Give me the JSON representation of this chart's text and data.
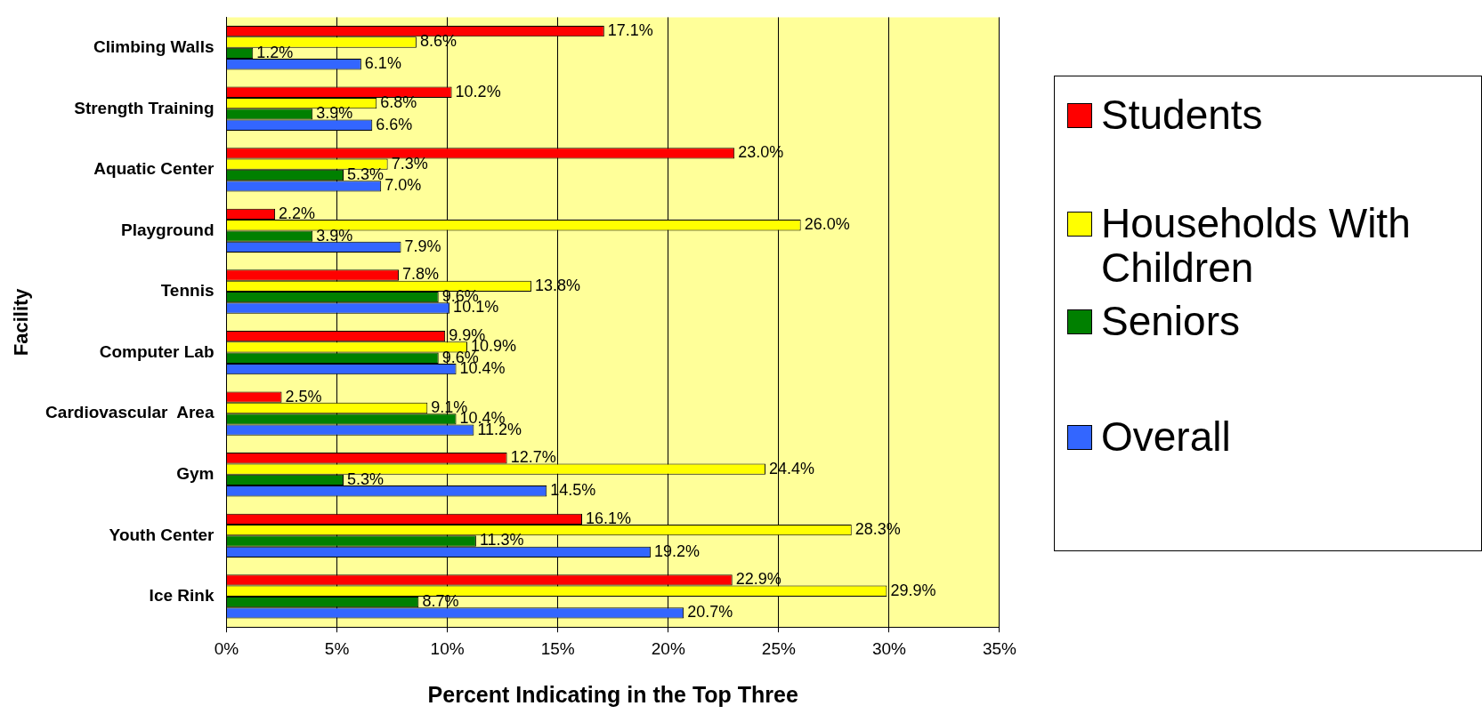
{
  "chart_data": {
    "type": "bar",
    "orientation": "horizontal",
    "xlabel": "Percent Indicating in the Top Three",
    "ylabel": "Facility",
    "categories": [
      "Climbing Walls",
      "Strength Training",
      "Aquatic Center",
      "Playground",
      "Tennis",
      "Computer Lab",
      "Cardiovascular  Area",
      "Gym",
      "Youth Center",
      "Ice Rink"
    ],
    "series": [
      {
        "name": "Students",
        "color": "#ff0000",
        "values": [
          17.1,
          10.2,
          23.0,
          2.2,
          7.8,
          9.9,
          2.5,
          12.7,
          16.1,
          22.9
        ],
        "value_labels": [
          "17.1%",
          "10.2%",
          "23.0%",
          "2.2%",
          "7.8%",
          "9.9%",
          "2.5%",
          "12.7%",
          "16.1%",
          "22.9%"
        ]
      },
      {
        "name": "Households With Children",
        "color": "#ffff00",
        "values": [
          8.6,
          6.8,
          7.3,
          26.0,
          13.8,
          10.9,
          9.1,
          24.4,
          28.3,
          29.9
        ],
        "value_labels": [
          "8.6%",
          "6.8%",
          "7.3%",
          "26.0%",
          "13.8%",
          "10.9%",
          "9.1%",
          "24.4%",
          "28.3%",
          "29.9%"
        ]
      },
      {
        "name": "Seniors",
        "color": "#008000",
        "values": [
          1.2,
          3.9,
          5.3,
          3.9,
          9.6,
          9.6,
          10.4,
          5.3,
          11.3,
          8.7
        ],
        "value_labels": [
          "1.2%",
          "3.9%",
          "5.3%",
          "3.9%",
          "9.6%",
          "9.6%",
          "10.4%",
          "5.3%",
          "11.3%",
          "8.7%"
        ]
      },
      {
        "name": "Overall",
        "color": "#3366ff",
        "values": [
          6.1,
          6.6,
          7.0,
          7.9,
          10.1,
          10.4,
          11.2,
          14.5,
          19.2,
          20.7
        ],
        "value_labels": [
          "6.1%",
          "6.6%",
          "7.0%",
          "7.9%",
          "10.1%",
          "10.4%",
          "11.2%",
          "14.5%",
          "19.2%",
          "20.7%"
        ]
      }
    ],
    "xlim": [
      0,
      35
    ],
    "xticks": [
      {
        "value": 0,
        "label": "0%"
      },
      {
        "value": 5,
        "label": "5%"
      },
      {
        "value": 10,
        "label": "10%"
      },
      {
        "value": 15,
        "label": "15%"
      },
      {
        "value": 20,
        "label": "20%"
      },
      {
        "value": 25,
        "label": "25%"
      },
      {
        "value": 30,
        "label": "30%"
      },
      {
        "value": 35,
        "label": "35%"
      }
    ],
    "grid": "x",
    "legend": "right"
  }
}
